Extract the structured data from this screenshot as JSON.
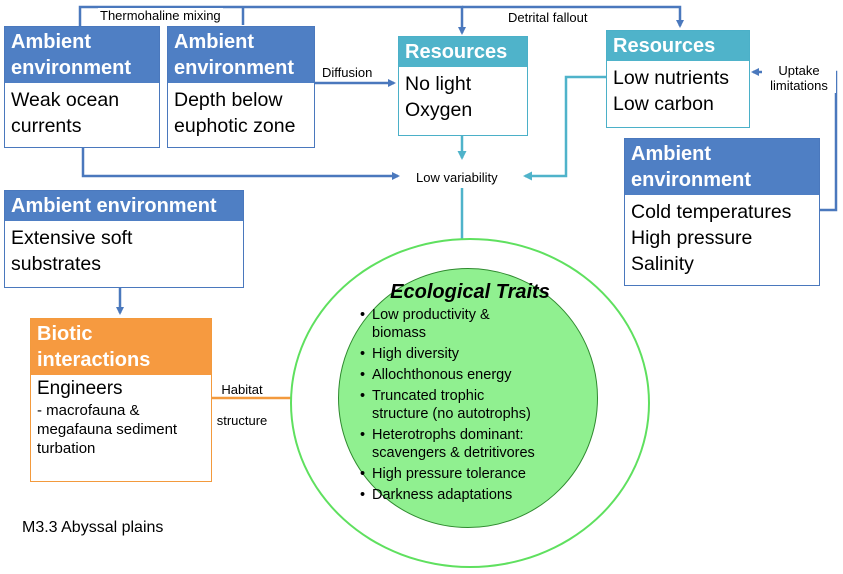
{
  "boxes": {
    "ocean": {
      "header": [
        "Ambient",
        "environment"
      ],
      "body": [
        "Weak ocean",
        "currents"
      ]
    },
    "depth": {
      "header": [
        "Ambient",
        "environment"
      ],
      "body": [
        "Depth below",
        "euphotic zone"
      ]
    },
    "res_light": {
      "header": [
        "Resources"
      ],
      "body": [
        "No light",
        "Oxygen"
      ]
    },
    "res_nutrients": {
      "header": [
        "Resources"
      ],
      "body": [
        "Low nutrients",
        "Low carbon"
      ]
    },
    "cold": {
      "header": [
        "Ambient",
        "environment"
      ],
      "body": [
        "Cold temperatures",
        "High pressure",
        "Salinity"
      ]
    },
    "substrates": {
      "header": [
        "Ambient environment"
      ],
      "body": [
        "Extensive soft",
        "substrates"
      ]
    },
    "biotic": {
      "header": [
        "Biotic",
        "interactions"
      ],
      "body_main": "Engineers",
      "body_sub": [
        "- macrofauna &",
        "megafauna sediment",
        "turbation"
      ]
    }
  },
  "labels": {
    "thermohaline": "Thermohaline mixing",
    "detrital": "Detrital fallout",
    "diffusion": "Diffusion",
    "uptake": [
      "Uptake",
      "limitations"
    ],
    "low_variability": "Low variability",
    "habitat": [
      "Habitat",
      "structure"
    ]
  },
  "traits": {
    "title": "Ecological Traits",
    "items": [
      [
        "Low productivity &",
        "biomass"
      ],
      [
        "High diversity"
      ],
      [
        "Allochthonous energy"
      ],
      [
        "Truncated trophic",
        "structure (no autotrophs)"
      ],
      [
        "Heterotrophs dominant:",
        "scavengers & detritivores"
      ],
      [
        "High pressure tolerance"
      ],
      [
        "Darkness adaptations"
      ]
    ]
  },
  "caption": "M3.3 Abyssal plains",
  "colors": {
    "ambient": "#4f7fc4",
    "resources": "#4fb3ca",
    "biotic": "#f69a40",
    "traits_fill": "#90f090",
    "traits_ring": "#5fe05f"
  }
}
